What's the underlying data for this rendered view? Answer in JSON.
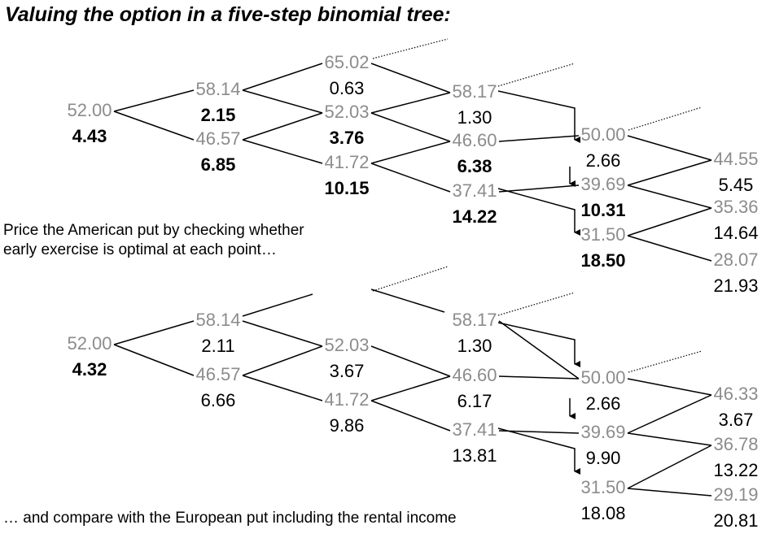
{
  "title": "Valuing the option in a five-step binomial tree:",
  "notes": {
    "american": [
      "Price the American put by checking whether",
      "early exercise is optimal at each point…"
    ],
    "european": "… and compare with the European put including the rental income"
  },
  "american_tree": {
    "nodes": [
      {
        "id": "a0",
        "price": "52.00",
        "value": "4.43",
        "bold": true
      },
      {
        "id": "a1u",
        "price": "58.14",
        "value": "2.15",
        "bold": true
      },
      {
        "id": "a1d",
        "price": "46.57",
        "value": "6.85",
        "bold": true
      },
      {
        "id": "a2uu",
        "price": "65.02",
        "value": "0.63",
        "bold": false
      },
      {
        "id": "a2ud",
        "price": "52.03",
        "value": "3.76",
        "bold": true
      },
      {
        "id": "a2dd",
        "price": "41.72",
        "value": "10.15",
        "bold": true
      },
      {
        "id": "a3u",
        "price": "58.17",
        "value": "1.30",
        "bold": false
      },
      {
        "id": "a3m",
        "price": "46.60",
        "value": "6.38",
        "bold": true
      },
      {
        "id": "a3d",
        "price": "37.41",
        "value": "14.22",
        "bold": true
      },
      {
        "id": "a4u",
        "price": "50.00",
        "value": "2.66",
        "bold": false
      },
      {
        "id": "a4m",
        "price": "39.69",
        "value": "10.31",
        "bold": true
      },
      {
        "id": "a4d",
        "price": "31.50",
        "value": "18.50",
        "bold": true
      },
      {
        "id": "a5a",
        "price": "44.55",
        "value": "5.45",
        "bold": false
      },
      {
        "id": "a5b",
        "price": "35.36",
        "value": "14.64",
        "bold": false
      },
      {
        "id": "a5c",
        "price": "28.07",
        "value": "21.93",
        "bold": false
      }
    ]
  },
  "european_tree": {
    "nodes": [
      {
        "id": "e0",
        "price": "52.00",
        "value": "4.32",
        "bold": true
      },
      {
        "id": "e1u",
        "price": "58.14",
        "value": "2.11",
        "bold": false
      },
      {
        "id": "e1d",
        "price": "46.57",
        "value": "6.66",
        "bold": false
      },
      {
        "id": "e2u",
        "price": "52.03",
        "value": "3.67",
        "bold": false
      },
      {
        "id": "e2d",
        "price": "41.72",
        "value": "9.86",
        "bold": false
      },
      {
        "id": "e3u",
        "price": "58.17",
        "value": "1.30",
        "bold": false
      },
      {
        "id": "e3m",
        "price": "46.60",
        "value": "6.17",
        "bold": false
      },
      {
        "id": "e3d",
        "price": "37.41",
        "value": "13.81",
        "bold": false
      },
      {
        "id": "e4u",
        "price": "50.00",
        "value": "2.66",
        "bold": false
      },
      {
        "id": "e4m",
        "price": "39.69",
        "value": "9.90",
        "bold": false
      },
      {
        "id": "e4d",
        "price": "31.50",
        "value": "18.08",
        "bold": false
      },
      {
        "id": "e5a",
        "price": "46.33",
        "value": "3.67",
        "bold": false
      },
      {
        "id": "e5b",
        "price": "36.78",
        "value": "13.22",
        "bold": false
      },
      {
        "id": "e5c",
        "price": "29.19",
        "value": "20.81",
        "bold": false
      }
    ]
  }
}
